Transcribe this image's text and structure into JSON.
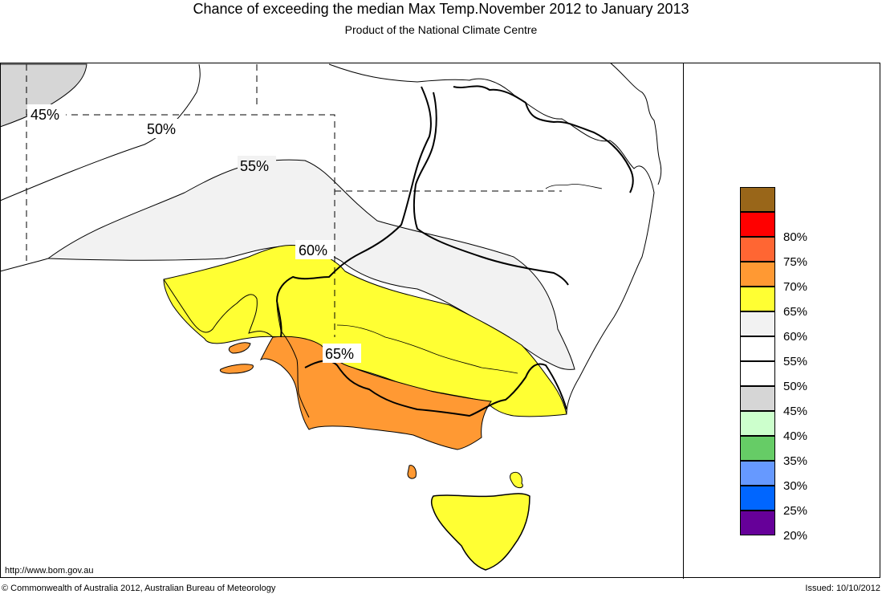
{
  "header": {
    "title": "Chance of exceeding the median Max Temp.November 2012 to January 2013",
    "subtitle": "Product of the National Climate Centre"
  },
  "map": {
    "contour_labels": {
      "c45": "45%",
      "c50": "50%",
      "c55": "55%",
      "c60": "60%",
      "c65": "65%"
    },
    "colors": {
      "c40_45": "#d6d6d6",
      "c55_60": "#f2f2f2",
      "c60_65": "#ffff33",
      "c65_70": "#ff9933",
      "land_outline": "#000000"
    }
  },
  "legend": {
    "items": [
      {
        "label": "",
        "color": "#996619"
      },
      {
        "label": "80%",
        "color": "#ff0000"
      },
      {
        "label": "75%",
        "color": "#ff6633"
      },
      {
        "label": "70%",
        "color": "#ff9933"
      },
      {
        "label": "65%",
        "color": "#ffff33"
      },
      {
        "label": "60%",
        "color": "#f2f2f2"
      },
      {
        "label": "55%",
        "color": "#ffffff"
      },
      {
        "label": "50%",
        "color": "#ffffff"
      },
      {
        "label": "45%",
        "color": "#d6d6d6"
      },
      {
        "label": "40%",
        "color": "#ccffcc"
      },
      {
        "label": "35%",
        "color": "#66cc66"
      },
      {
        "label": "30%",
        "color": "#6699ff"
      },
      {
        "label": "25%",
        "color": "#0066ff"
      },
      {
        "label": "20%",
        "color": "#660099"
      }
    ]
  },
  "footer": {
    "url": "http://www.bom.gov.au",
    "copyright": "© Commonwealth of Australia 2012, Australian Bureau of Meteorology",
    "issued": "Issued: 10/10/2012"
  }
}
